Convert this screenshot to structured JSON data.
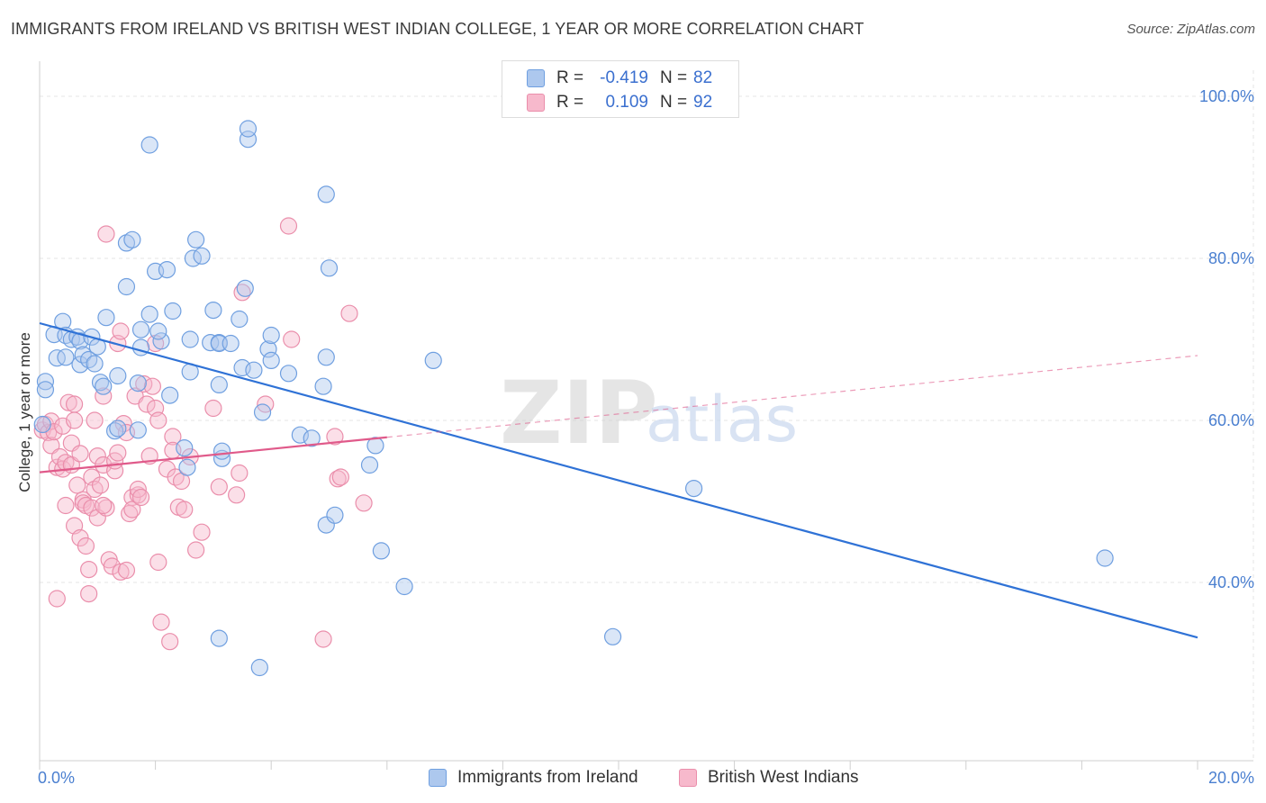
{
  "title": "IMMIGRANTS FROM IRELAND VS BRITISH WEST INDIAN COLLEGE, 1 YEAR OR MORE CORRELATION CHART",
  "source": "Source: ZipAtlas.com",
  "watermark": {
    "zip": "ZIP",
    "atlas": "atlas"
  },
  "legend": {
    "r_label": "R =",
    "n_label": "N =",
    "rows": [
      {
        "r": "-0.419",
        "n": "82",
        "swatch_fill": "#adc8ee",
        "swatch_stroke": "#6f9fe0"
      },
      {
        "r": "0.109",
        "n": "92",
        "swatch_fill": "#f7b9cc",
        "swatch_stroke": "#ea8eab"
      }
    ]
  },
  "colors": {
    "blue_fill": "#adc8ee",
    "blue_stroke": "#6f9fe0",
    "blue_line": "#2f72d6",
    "pink_fill": "#f7b9cc",
    "pink_stroke": "#ea8eab",
    "pink_line": "#e05a8a",
    "axis_label": "#4a7fd0",
    "grid": "#e6e6e6"
  },
  "chart_data": {
    "type": "scatter",
    "title": "IMMIGRANTS FROM IRELAND VS BRITISH WEST INDIAN COLLEGE, 1 YEAR OR MORE CORRELATION CHART",
    "xlabel": "",
    "ylabel": "College, 1 year or more",
    "xlim": [
      0,
      20
    ],
    "ylim": [
      18,
      103
    ],
    "x_tick_labels": [
      "0.0%",
      "20.0%"
    ],
    "y_ticks": [
      40,
      60,
      80,
      100
    ],
    "y_tick_labels": [
      "40.0%",
      "60.0%",
      "80.0%",
      "100.0%"
    ],
    "grid": true,
    "legend_position": "top-center",
    "series": [
      {
        "name": "Immigrants from Ireland",
        "r": -0.419,
        "n": 82,
        "trend": {
          "x": [
            0,
            20
          ],
          "y": [
            72.0,
            33.2
          ],
          "dashed_from_x": null
        },
        "points": [
          [
            0.05,
            59.5
          ],
          [
            0.1,
            64.8
          ],
          [
            0.1,
            63.8
          ],
          [
            0.25,
            70.6
          ],
          [
            0.3,
            67.7
          ],
          [
            0.4,
            72.2
          ],
          [
            0.45,
            70.5
          ],
          [
            0.45,
            67.8
          ],
          [
            0.55,
            70.0
          ],
          [
            0.65,
            70.3
          ],
          [
            0.7,
            69.8
          ],
          [
            0.7,
            66.9
          ],
          [
            0.75,
            68.1
          ],
          [
            0.85,
            67.5
          ],
          [
            0.9,
            70.3
          ],
          [
            0.95,
            67.0
          ],
          [
            1.0,
            69.1
          ],
          [
            1.05,
            64.7
          ],
          [
            1.15,
            72.7
          ],
          [
            1.1,
            64.2
          ],
          [
            1.3,
            58.7
          ],
          [
            1.35,
            59.0
          ],
          [
            1.5,
            76.5
          ],
          [
            1.5,
            81.9
          ],
          [
            1.6,
            82.3
          ],
          [
            1.7,
            64.6
          ],
          [
            1.7,
            58.8
          ],
          [
            1.75,
            69.0
          ],
          [
            1.75,
            71.2
          ],
          [
            1.9,
            94.0
          ],
          [
            1.9,
            73.1
          ],
          [
            2.0,
            78.4
          ],
          [
            2.1,
            69.8
          ],
          [
            2.05,
            71.0
          ],
          [
            2.2,
            78.6
          ],
          [
            2.25,
            63.1
          ],
          [
            2.3,
            73.5
          ],
          [
            2.5,
            56.6
          ],
          [
            2.55,
            54.2
          ],
          [
            2.6,
            66.0
          ],
          [
            2.6,
            70.0
          ],
          [
            2.65,
            80.0
          ],
          [
            2.7,
            82.3
          ],
          [
            2.8,
            80.3
          ],
          [
            2.95,
            69.6
          ],
          [
            3.0,
            73.6
          ],
          [
            3.1,
            69.6
          ],
          [
            3.15,
            55.3
          ],
          [
            3.1,
            33.1
          ],
          [
            3.1,
            69.5
          ],
          [
            3.1,
            64.4
          ],
          [
            3.15,
            56.2
          ],
          [
            3.3,
            69.5
          ],
          [
            3.45,
            72.5
          ],
          [
            3.5,
            66.5
          ],
          [
            3.55,
            76.3
          ],
          [
            3.7,
            66.2
          ],
          [
            3.6,
            94.7
          ],
          [
            3.6,
            96.0
          ],
          [
            3.85,
            61.0
          ],
          [
            3.95,
            68.8
          ],
          [
            4.0,
            67.4
          ],
          [
            4.0,
            70.5
          ],
          [
            4.3,
            65.8
          ],
          [
            4.5,
            58.2
          ],
          [
            4.7,
            57.8
          ],
          [
            4.9,
            64.2
          ],
          [
            4.95,
            87.9
          ],
          [
            4.95,
            67.8
          ],
          [
            4.95,
            47.1
          ],
          [
            5.0,
            78.8
          ],
          [
            5.1,
            48.3
          ],
          [
            5.7,
            54.5
          ],
          [
            5.8,
            56.9
          ],
          [
            5.9,
            43.9
          ],
          [
            6.3,
            39.5
          ],
          [
            6.8,
            67.4
          ],
          [
            9.9,
            33.3
          ],
          [
            11.3,
            51.6
          ],
          [
            18.4,
            43.0
          ],
          [
            3.8,
            29.5
          ],
          [
            1.35,
            65.5
          ]
        ]
      },
      {
        "name": "British West Indians",
        "r": 0.109,
        "n": 92,
        "trend": {
          "x": [
            0,
            20
          ],
          "y": [
            53.6,
            68.0
          ],
          "dashed_from_x": 6.0
        },
        "points": [
          [
            0.05,
            58.8
          ],
          [
            0.1,
            59.5
          ],
          [
            0.15,
            58.5
          ],
          [
            0.2,
            56.9
          ],
          [
            0.2,
            59.9
          ],
          [
            0.25,
            58.6
          ],
          [
            0.3,
            54.2
          ],
          [
            0.35,
            55.5
          ],
          [
            0.4,
            54.0
          ],
          [
            0.4,
            59.3
          ],
          [
            0.45,
            49.5
          ],
          [
            0.45,
            54.8
          ],
          [
            0.5,
            62.2
          ],
          [
            0.55,
            57.2
          ],
          [
            0.6,
            60.0
          ],
          [
            0.55,
            54.5
          ],
          [
            0.6,
            47.0
          ],
          [
            0.65,
            52.0
          ],
          [
            0.7,
            45.5
          ],
          [
            0.7,
            55.9
          ],
          [
            0.75,
            50.2
          ],
          [
            0.75,
            49.8
          ],
          [
            0.8,
            49.5
          ],
          [
            0.8,
            44.5
          ],
          [
            0.85,
            41.6
          ],
          [
            0.85,
            38.6
          ],
          [
            0.9,
            53.0
          ],
          [
            0.9,
            49.2
          ],
          [
            0.95,
            60.0
          ],
          [
            0.95,
            51.5
          ],
          [
            1.0,
            55.6
          ],
          [
            1.0,
            48.0
          ],
          [
            1.05,
            52.0
          ],
          [
            1.1,
            54.5
          ],
          [
            1.1,
            63.0
          ],
          [
            1.15,
            83.0
          ],
          [
            1.15,
            49.2
          ],
          [
            1.2,
            42.8
          ],
          [
            1.25,
            42.0
          ],
          [
            1.3,
            53.8
          ],
          [
            1.3,
            55.0
          ],
          [
            1.35,
            56.0
          ],
          [
            1.35,
            69.5
          ],
          [
            1.4,
            71.0
          ],
          [
            1.4,
            41.3
          ],
          [
            1.45,
            59.6
          ],
          [
            1.5,
            58.5
          ],
          [
            1.5,
            41.5
          ],
          [
            1.55,
            48.5
          ],
          [
            1.6,
            50.5
          ],
          [
            1.6,
            49.0
          ],
          [
            1.65,
            63.0
          ],
          [
            1.7,
            50.8
          ],
          [
            1.7,
            51.5
          ],
          [
            1.75,
            50.5
          ],
          [
            1.8,
            64.5
          ],
          [
            1.85,
            62.0
          ],
          [
            1.9,
            55.6
          ],
          [
            1.95,
            64.2
          ],
          [
            2.0,
            61.5
          ],
          [
            2.05,
            60.0
          ],
          [
            2.0,
            69.5
          ],
          [
            2.1,
            35.1
          ],
          [
            2.2,
            54.0
          ],
          [
            2.25,
            32.7
          ],
          [
            2.3,
            58.0
          ],
          [
            2.3,
            56.3
          ],
          [
            2.35,
            53.0
          ],
          [
            2.4,
            49.3
          ],
          [
            2.45,
            52.5
          ],
          [
            2.5,
            49.0
          ],
          [
            2.6,
            55.5
          ],
          [
            2.7,
            44.0
          ],
          [
            2.8,
            46.2
          ],
          [
            3.0,
            61.5
          ],
          [
            3.1,
            51.8
          ],
          [
            3.4,
            50.8
          ],
          [
            3.45,
            53.5
          ],
          [
            3.5,
            75.8
          ],
          [
            3.9,
            62.0
          ],
          [
            4.3,
            84.0
          ],
          [
            4.35,
            70.0
          ],
          [
            4.9,
            33.0
          ],
          [
            5.1,
            58.0
          ],
          [
            5.15,
            52.8
          ],
          [
            5.2,
            53.0
          ],
          [
            5.35,
            73.2
          ],
          [
            5.6,
            49.8
          ],
          [
            0.3,
            38.0
          ],
          [
            0.6,
            62.0
          ],
          [
            1.1,
            49.5
          ],
          [
            2.05,
            42.5
          ]
        ]
      }
    ]
  }
}
